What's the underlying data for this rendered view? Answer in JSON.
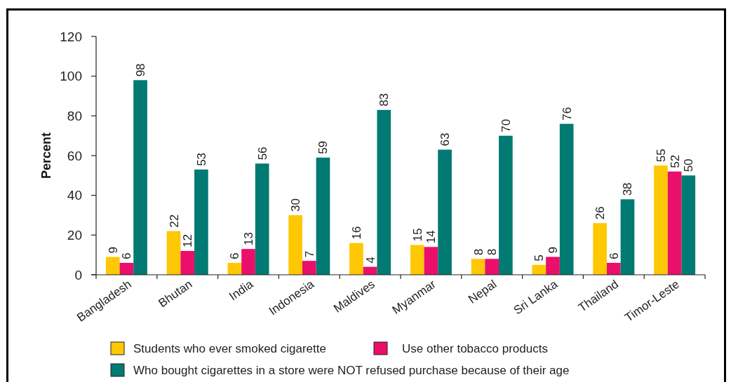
{
  "chart_data": {
    "type": "bar",
    "ylabel": "Percent",
    "categories": [
      "Bangladesh",
      "Bhutan",
      "India",
      "Indonesia",
      "Maldives",
      "Myanmar",
      "Nepal",
      "Sri Lanka",
      "Thailand",
      "Timor-Leste"
    ],
    "series": [
      {
        "name": "Students who ever smoked cigarette",
        "color": "#ffc805",
        "values": [
          9,
          22,
          6,
          30,
          16,
          15,
          8,
          5,
          26,
          55
        ]
      },
      {
        "name": "Use other tobacco products",
        "color": "#ea0f6b",
        "values": [
          6,
          12,
          13,
          7,
          4,
          14,
          8,
          9,
          6,
          52
        ]
      },
      {
        "name": "Who bought cigarettes in a store were NOT refused purchase because of their age",
        "color": "#007a72",
        "values": [
          98,
          53,
          56,
          59,
          83,
          63,
          70,
          76,
          38,
          50
        ]
      }
    ],
    "ylim": [
      0,
      120
    ],
    "yticks": [
      0,
      20,
      40,
      60,
      80,
      100,
      120
    ],
    "data_labels": true,
    "legend": "bottom"
  }
}
